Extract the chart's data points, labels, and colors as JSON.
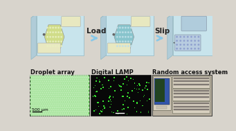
{
  "bg_color": "#d8d4cc",
  "top_row": {
    "arrow_labels": [
      "Load",
      "Slip"
    ],
    "arrow_color": "#88c8e8",
    "device_face": "#c8e4ec",
    "device_edge": "#90b8c4",
    "device_top": "#e8f4f8",
    "chip_color1": "#d0dc88",
    "chip_color2": "#88c4cc",
    "chip_color3": "#a8c0d8",
    "rect_color1": "#e8e8c0",
    "rect_color2": "#e8e8c0",
    "dot_color1": "#e8f0c0",
    "dot_color2": "#c0e0e8",
    "dot_color3": "#a0b8cc"
  },
  "bottom_row": {
    "labels": [
      "Droplet array",
      "Digital LAMP",
      "Random access system"
    ],
    "label_fontsize": 6.0,
    "droplet_bg": "#58c848",
    "droplet_dot": "#c8f0c0",
    "lamp_bg": "#080808",
    "lamp_dot": "#38e030",
    "scale_bar_text": "500 μm",
    "instrument_bg": "#b8b0a0",
    "instrument_body": "#d8d0c0",
    "instrument_dark": "#888078",
    "monitor_screen": "#4466aa",
    "monitor_green": "#224422"
  }
}
